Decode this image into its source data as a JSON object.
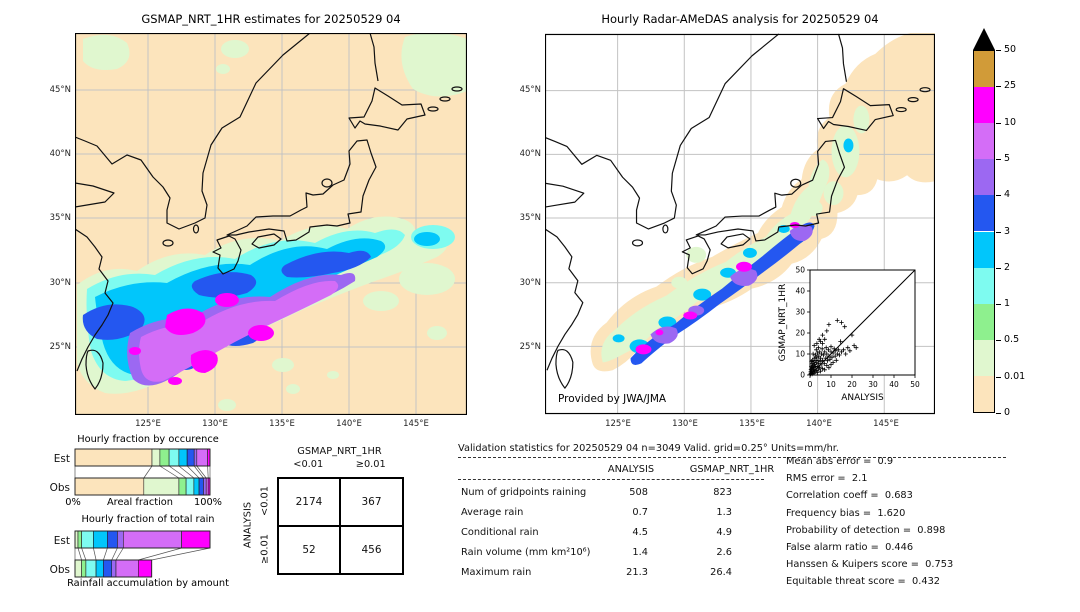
{
  "palette": {
    "peach": "#fce4bc",
    "palegreen": "#e0f7cf",
    "green": "#8ef08e",
    "palecyan": "#7efbf0",
    "cyan": "#01c6fb",
    "blue": "#2457f0",
    "purple": "#9c68f2",
    "orchid": "#d46df7",
    "magenta": "#ff00ff",
    "tan": "#d19b38",
    "overflow": "#000000",
    "grid": "#c3c3c3",
    "coast": "#111111"
  },
  "left_map": {
    "title": "GSMAP_NRT_1HR estimates for 20250529 04",
    "lat_ticks": [
      "45°N",
      "40°N",
      "35°N",
      "30°N",
      "25°N"
    ],
    "lon_ticks": [
      "125°E",
      "130°E",
      "135°E",
      "140°E",
      "145°E"
    ]
  },
  "right_map": {
    "title": "Hourly Radar-AMeDAS analysis for 20250529 04",
    "lat_ticks": [
      "45°N",
      "40°N",
      "35°N",
      "30°N",
      "25°N"
    ],
    "lon_ticks": [
      "125°E",
      "130°E",
      "135°E",
      "140°E",
      "145°E"
    ],
    "credit": "Provided by JWA/JMA"
  },
  "colorbar": {
    "tick_labels_top_to_bottom": [
      "50",
      "25",
      "10",
      "5",
      "4",
      "3",
      "2",
      "1",
      "0.5",
      "0.01",
      "0"
    ],
    "segment_colors_top_to_bottom": [
      "tan",
      "magenta",
      "orchid",
      "purple",
      "blue",
      "cyan",
      "palecyan",
      "green",
      "palegreen",
      "peach"
    ],
    "units": "mm/hr"
  },
  "contingency": {
    "col_title": "GSMAP_NRT_1HR",
    "row_title": "ANALYSIS",
    "col_labels": [
      "<0.01",
      "≥0.01"
    ],
    "row_labels": [
      "<0.01",
      "≥0.01"
    ],
    "values": [
      [
        "2174",
        "367"
      ],
      [
        "52",
        "456"
      ]
    ]
  },
  "validation": {
    "title": "Validation statistics for 20250529 04  n=3049 Valid. grid=0.25° Units=mm/hr.",
    "columns": [
      "ANALYSIS",
      "GSMAP_NRT_1HR"
    ],
    "rows": [
      {
        "label": "Num of gridpoints raining",
        "values": [
          "508",
          "823"
        ]
      },
      {
        "label": "Average rain",
        "values": [
          "0.7",
          "1.3"
        ]
      },
      {
        "label": "Conditional rain",
        "values": [
          "4.5",
          "4.9"
        ]
      },
      {
        "label": "Rain volume (mm km²10⁶)",
        "values": [
          "1.4",
          "2.6"
        ]
      },
      {
        "label": "Maximum rain",
        "values": [
          "21.3",
          "26.4"
        ]
      }
    ]
  },
  "scores": [
    {
      "label": "Mean abs error",
      "value": "0.9"
    },
    {
      "label": "RMS error",
      "value": "2.1"
    },
    {
      "label": "Correlation coeff",
      "value": "0.683"
    },
    {
      "label": "Frequency bias",
      "value": "1.620"
    },
    {
      "label": "Probability of detection",
      "value": "0.898"
    },
    {
      "label": "False alarm ratio",
      "value": "0.446"
    },
    {
      "label": "Hanssen & Kuipers score",
      "value": "0.753"
    },
    {
      "label": "Equitable threat score",
      "value": "0.432"
    }
  ],
  "chart_data": [
    {
      "id": "occurrence",
      "type": "bar",
      "orientation": "horizontal-stacked",
      "title": "Hourly fraction by occurence",
      "categories": [
        "Est",
        "Obs"
      ],
      "xlabel": "Areal fraction",
      "xlim": [
        "0%",
        "100%"
      ],
      "series_colors": [
        "peach",
        "palegreen",
        "green",
        "palecyan",
        "cyan",
        "blue",
        "purple",
        "orchid",
        "magenta"
      ],
      "est": [
        57,
        5.9,
        6.8,
        7.3,
        6.1,
        5.2,
        1.9,
        8,
        1.8
      ],
      "obs": [
        51,
        26,
        5.3,
        5.8,
        3.8,
        3.3,
        2,
        1.5,
        1.3
      ]
    },
    {
      "id": "totalrain",
      "type": "bar",
      "orientation": "horizontal-stacked",
      "title": "Hourly fraction of total rain",
      "caption": "Rainfall accumulation by amount",
      "categories": [
        "Est",
        "Obs"
      ],
      "series_colors": [
        "palegreen",
        "green",
        "palecyan",
        "cyan",
        "blue",
        "purple",
        "orchid",
        "magenta"
      ],
      "est": [
        2.2,
        2.7,
        8.7,
        10.4,
        7.4,
        4.4,
        43.2,
        21
      ],
      "obs": [
        4.9,
        3.2,
        7.5,
        5.4,
        6.2,
        3.2,
        16.5,
        9.9
      ]
    },
    {
      "id": "scatter-inset",
      "type": "scatter",
      "xlabel": "ANALYSIS",
      "ylabel": "GSMAP_NRT_1HR",
      "xlim": [
        0,
        50
      ],
      "ylim": [
        0,
        50
      ],
      "ticks": [
        0,
        10,
        20,
        30,
        40,
        50
      ],
      "diagonal": true,
      "points": [
        [
          0.3,
          0.4
        ],
        [
          0.4,
          1.5
        ],
        [
          0.5,
          0.8
        ],
        [
          0.5,
          2.6
        ],
        [
          0.6,
          4
        ],
        [
          0.8,
          1.2
        ],
        [
          0.8,
          3.2
        ],
        [
          1,
          0.5
        ],
        [
          1,
          2
        ],
        [
          1,
          5.5
        ],
        [
          1.2,
          3.8
        ],
        [
          1.3,
          7
        ],
        [
          1.5,
          1.5
        ],
        [
          1.5,
          4.5
        ],
        [
          1.7,
          2.8
        ],
        [
          1.8,
          6.2
        ],
        [
          2,
          0.8
        ],
        [
          2,
          3.5
        ],
        [
          2,
          8
        ],
        [
          2.2,
          5
        ],
        [
          2.4,
          1.8
        ],
        [
          2.5,
          4.2
        ],
        [
          2.6,
          9.5
        ],
        [
          2.8,
          6.8
        ],
        [
          3,
          2.2
        ],
        [
          3,
          5.8
        ],
        [
          3,
          12
        ],
        [
          3.2,
          8.5
        ],
        [
          3.5,
          1.2
        ],
        [
          3.5,
          4
        ],
        [
          3.6,
          10.5
        ],
        [
          3.8,
          7
        ],
        [
          4,
          2.8
        ],
        [
          4,
          5.5
        ],
        [
          4,
          13
        ],
        [
          4.2,
          9
        ],
        [
          4.5,
          3.5
        ],
        [
          4.6,
          11
        ],
        [
          4.8,
          6.5
        ],
        [
          5,
          1.8
        ],
        [
          5,
          8
        ],
        [
          5,
          16
        ],
        [
          5.3,
          4.8
        ],
        [
          5.5,
          10
        ],
        [
          5.8,
          12.5
        ],
        [
          6,
          3
        ],
        [
          6,
          7
        ],
        [
          6,
          15
        ],
        [
          6.4,
          9.5
        ],
        [
          6.8,
          5.5
        ],
        [
          7,
          2.5
        ],
        [
          7,
          11
        ],
        [
          7,
          17
        ],
        [
          7.5,
          8
        ],
        [
          7.7,
          13
        ],
        [
          8,
          4.5
        ],
        [
          8,
          10
        ],
        [
          8,
          21
        ],
        [
          8.4,
          6.8
        ],
        [
          8.8,
          12
        ],
        [
          9,
          3.5
        ],
        [
          9,
          9
        ],
        [
          9,
          24
        ],
        [
          9.5,
          7.5
        ],
        [
          10,
          5
        ],
        [
          10,
          11
        ],
        [
          10,
          13.5
        ],
        [
          10.5,
          8.5
        ],
        [
          11,
          6
        ],
        [
          11,
          10.5
        ],
        [
          11.5,
          12.5
        ],
        [
          12,
          9
        ],
        [
          12,
          11.5
        ],
        [
          12.5,
          7
        ],
        [
          13,
          10
        ],
        [
          13,
          26
        ],
        [
          13.5,
          12
        ],
        [
          14,
          9.5
        ],
        [
          14.5,
          16
        ],
        [
          15,
          11
        ],
        [
          15,
          25
        ],
        [
          16,
          12
        ],
        [
          16.5,
          23
        ],
        [
          17,
          10
        ],
        [
          18,
          13
        ],
        [
          19,
          11.5
        ],
        [
          20,
          19
        ],
        [
          21,
          14
        ],
        [
          22,
          13
        ],
        [
          2,
          14
        ],
        [
          1.5,
          10
        ],
        [
          0.7,
          6.5
        ],
        [
          3.3,
          15
        ],
        [
          6,
          19
        ],
        [
          4.4,
          17
        ]
      ]
    }
  ]
}
